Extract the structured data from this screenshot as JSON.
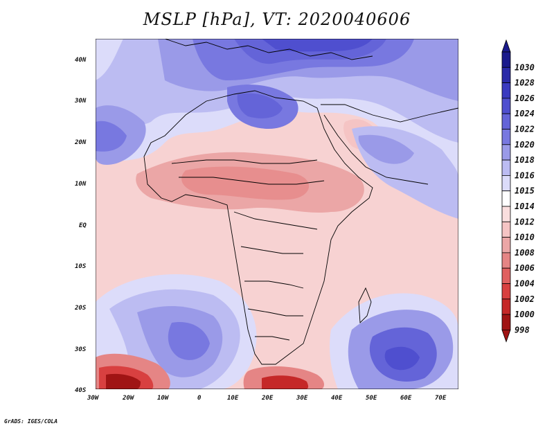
{
  "title": "MSLP [hPa], VT: 2020040606",
  "credit": "GrADS: IGES/COLA",
  "map": {
    "region": "Africa",
    "lon_range": [
      -30,
      75
    ],
    "lat_range": [
      -40,
      45
    ],
    "x_tick_labels": [
      "30W",
      "20W",
      "10W",
      "0",
      "10E",
      "20E",
      "30E",
      "40E",
      "50E",
      "60E",
      "70E"
    ],
    "y_tick_labels": [
      "40N",
      "30N",
      "20N",
      "10N",
      "EQ",
      "10S",
      "20S",
      "30S",
      "40S"
    ]
  },
  "colorbar": {
    "levels": [
      "1030",
      "1028",
      "1026",
      "1024",
      "1022",
      "1020",
      "1018",
      "1016",
      "1015",
      "1014",
      "1012",
      "1010",
      "1008",
      "1006",
      "1004",
      "1002",
      "1000",
      "998"
    ],
    "colors": [
      "#1a1a8c",
      "#2a2aa8",
      "#3a3ac0",
      "#4f4fcf",
      "#6464d8",
      "#7878e0",
      "#9a9ae8",
      "#bcbcf2",
      "#dcdcfa",
      "#ffffff",
      "#fadede",
      "#f5c4c4",
      "#eba6a6",
      "#e58585",
      "#e06060",
      "#d84040",
      "#c52828",
      "#a01414"
    ]
  }
}
